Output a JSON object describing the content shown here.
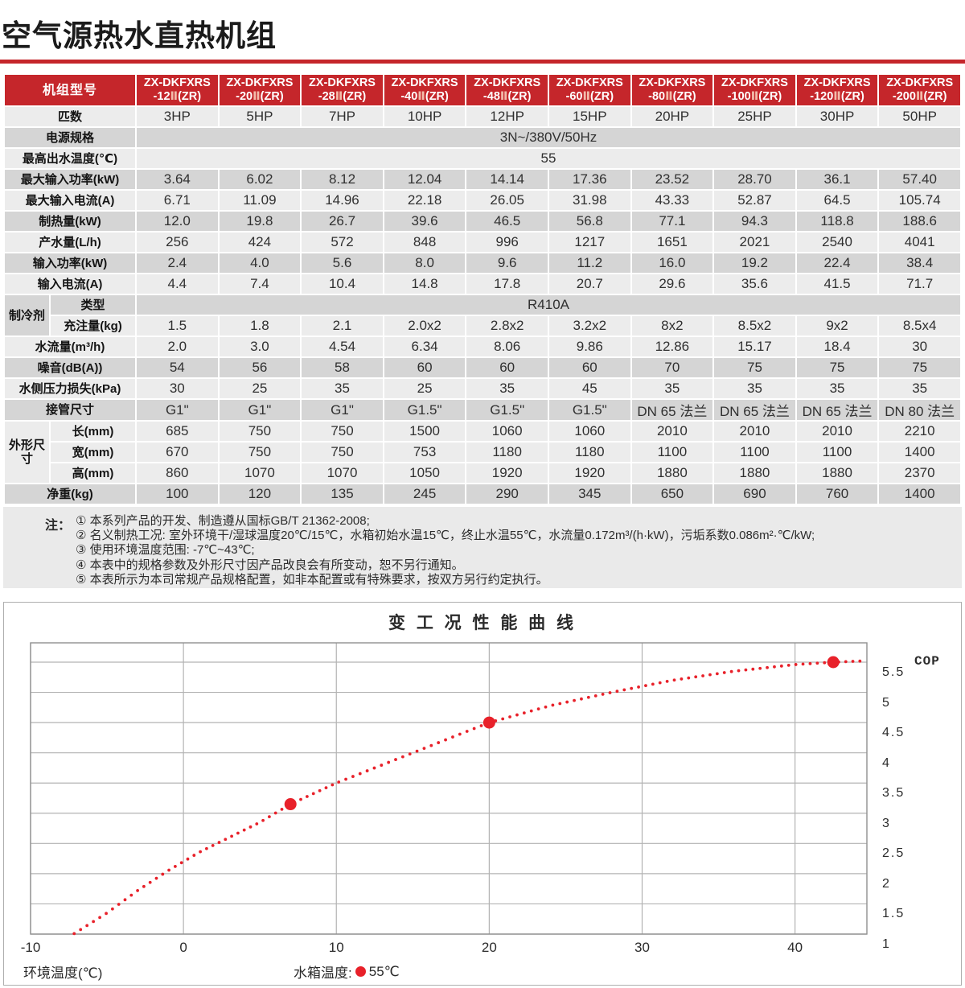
{
  "page": {
    "title": "空气源热水直热机组"
  },
  "colors": {
    "accent_red": "#c5262b",
    "chart_red": "#e8212a",
    "row_light": "#ececec",
    "row_dark": "#d5d5d5",
    "notes_bg": "#eaeaea"
  },
  "table": {
    "corner_label": "机组型号",
    "models": [
      {
        "line1": "ZX-DKFXRS",
        "pre": "-12",
        "roman": "Ⅱ",
        "suf": "(ZR)"
      },
      {
        "line1": "ZX-DKFXRS",
        "pre": "-20",
        "roman": "Ⅱ",
        "suf": "(ZR)"
      },
      {
        "line1": "ZX-DKFXRS",
        "pre": "-28",
        "roman": "Ⅱ",
        "suf": "(ZR)"
      },
      {
        "line1": "ZX-DKFXRS",
        "pre": "-40",
        "roman": "Ⅱ",
        "suf": "(ZR)"
      },
      {
        "line1": "ZX-DKFXRS",
        "pre": "-48",
        "roman": "Ⅱ",
        "suf": "(ZR)"
      },
      {
        "line1": "ZX-DKFXRS",
        "pre": "-60",
        "roman": "Ⅱ",
        "suf": "(ZR)"
      },
      {
        "line1": "ZX-DKFXRS",
        "pre": "-80",
        "roman": "Ⅱ",
        "suf": "(ZR)"
      },
      {
        "line1": "ZX-DKFXRS",
        "pre": "-100",
        "roman": "Ⅱ",
        "suf": "(ZR)"
      },
      {
        "line1": "ZX-DKFXRS",
        "pre": "-120",
        "roman": "Ⅱ",
        "suf": "(ZR)"
      },
      {
        "line1": "ZX-DKFXRS",
        "pre": "-200",
        "roman": "Ⅱ",
        "suf": "(ZR)"
      }
    ],
    "rows": [
      {
        "label": "匹数",
        "shade": "light",
        "values": [
          "3HP",
          "5HP",
          "7HP",
          "10HP",
          "12HP",
          "15HP",
          "20HP",
          "25HP",
          "30HP",
          "50HP"
        ]
      },
      {
        "label": "电源规格",
        "shade": "dark",
        "span_value": "3N~/380V/50Hz"
      },
      {
        "label": "最高出水温度(℃)",
        "shade": "light",
        "span_value": "55"
      },
      {
        "label": "最大输入功率(kW)",
        "shade": "dark",
        "values": [
          "3.64",
          "6.02",
          "8.12",
          "12.04",
          "14.14",
          "17.36",
          "23.52",
          "28.70",
          "36.1",
          "57.40"
        ]
      },
      {
        "label": "最大输入电流(A)",
        "shade": "light",
        "values": [
          "6.71",
          "11.09",
          "14.96",
          "22.18",
          "26.05",
          "31.98",
          "43.33",
          "52.87",
          "64.5",
          "105.74"
        ]
      },
      {
        "label": "制热量(kW)",
        "shade": "dark",
        "values": [
          "12.0",
          "19.8",
          "26.7",
          "39.6",
          "46.5",
          "56.8",
          "77.1",
          "94.3",
          "118.8",
          "188.6"
        ]
      },
      {
        "label": "产水量(L/h)",
        "shade": "light",
        "values": [
          "256",
          "424",
          "572",
          "848",
          "996",
          "1217",
          "1651",
          "2021",
          "2540",
          "4041"
        ]
      },
      {
        "label": "输入功率(kW)",
        "shade": "dark",
        "values": [
          "2.4",
          "4.0",
          "5.6",
          "8.0",
          "9.6",
          "11.2",
          "16.0",
          "19.2",
          "22.4",
          "38.4"
        ]
      },
      {
        "label": "输入电流(A)",
        "shade": "light",
        "values": [
          "4.4",
          "7.4",
          "10.4",
          "14.8",
          "17.8",
          "20.7",
          "29.6",
          "35.6",
          "41.5",
          "71.7"
        ]
      },
      {
        "label": "类型",
        "sub": true,
        "group": "制冷剂",
        "group_span": 2,
        "shade": "dark",
        "span_value": "R410A"
      },
      {
        "label": "充注量(kg)",
        "sub": true,
        "shade": "light",
        "values": [
          "1.5",
          "1.8",
          "2.1",
          "2.0x2",
          "2.8x2",
          "3.2x2",
          "8x2",
          "8.5x2",
          "9x2",
          "8.5x4"
        ]
      },
      {
        "label": "水流量(m³/h)",
        "shade": "light",
        "values": [
          "2.0",
          "3.0",
          "4.54",
          "6.34",
          "8.06",
          "9.86",
          "12.86",
          "15.17",
          "18.4",
          "30"
        ]
      },
      {
        "label": "噪音(dB(A))",
        "shade": "dark",
        "values": [
          "54",
          "56",
          "58",
          "60",
          "60",
          "60",
          "70",
          "75",
          "75",
          "75"
        ]
      },
      {
        "label": "水侧压力损失(kPa)",
        "shade": "light",
        "values": [
          "30",
          "25",
          "35",
          "25",
          "35",
          "45",
          "35",
          "35",
          "35",
          "35"
        ]
      },
      {
        "label": "接管尺寸",
        "shade": "dark",
        "values": [
          "G1\"",
          "G1\"",
          "G1\"",
          "G1.5\"",
          "G1.5\"",
          "G1.5\"",
          "DN 65 法兰",
          "DN 65 法兰",
          "DN 65 法兰",
          "DN 80 法兰"
        ]
      },
      {
        "label": "长(mm)",
        "sub": true,
        "group": "外形尺寸",
        "group_span": 3,
        "shade": "light",
        "values": [
          "685",
          "750",
          "750",
          "1500",
          "1060",
          "1060",
          "2010",
          "2010",
          "2010",
          "2210"
        ]
      },
      {
        "label": "宽(mm)",
        "sub": true,
        "shade": "light",
        "values": [
          "670",
          "750",
          "750",
          "753",
          "1180",
          "1180",
          "1100",
          "1100",
          "1100",
          "1400"
        ]
      },
      {
        "label": "高(mm)",
        "sub": true,
        "shade": "light",
        "values": [
          "860",
          "1070",
          "1070",
          "1050",
          "1920",
          "1920",
          "1880",
          "1880",
          "1880",
          "2370"
        ]
      },
      {
        "label": "净重(kg)",
        "shade": "dark",
        "values": [
          "100",
          "120",
          "135",
          "245",
          "290",
          "345",
          "650",
          "690",
          "760",
          "1400"
        ]
      }
    ]
  },
  "notes": {
    "prefix": "注：",
    "lines": [
      "① 本系列产品的开发、制造遵从国标GB/T 21362-2008;",
      "② 名义制热工况: 室外环境干/湿球温度20℃/15℃，水箱初始水温15℃，终止水温55℃，水流量0.172m³/(h·kW)，污垢系数0.086m²·℃/kW;",
      "③ 使用环境温度范围: -7℃~43℃;",
      "④ 本表中的规格参数及外形尺寸因产品改良会有所变动，恕不另行通知。",
      "⑤ 本表所示为本司常规产品规格配置，如非本配置或有特殊要求，按双方另行约定执行。"
    ]
  },
  "chart_data": {
    "type": "line",
    "title": "变  工  况  性  能  曲  线",
    "xlabel": "环境温度(℃)",
    "ylabel": "COP",
    "y_axis_side": "right",
    "grid": true,
    "line_style": "dotted",
    "xlim": [
      -10,
      44.7
    ],
    "ylim": [
      1,
      5.82
    ],
    "x_ticks": [
      -10,
      0,
      10,
      20,
      30,
      40
    ],
    "y_ticks": [
      5.5,
      5,
      4.5,
      4,
      3.5,
      3,
      2.5,
      2,
      1.5,
      1
    ],
    "legend": {
      "label": "水箱温度:",
      "marker": "dot",
      "value": "55℃",
      "color": "#e8212a"
    },
    "series": [
      {
        "name": "水箱温度 55℃",
        "color": "#e8212a",
        "points": [
          [
            -7.2,
            1.0
          ],
          [
            -5,
            1.35
          ],
          [
            -3,
            1.72
          ],
          [
            -1,
            2.05
          ],
          [
            1,
            2.35
          ],
          [
            3,
            2.6
          ],
          [
            5,
            2.85
          ],
          [
            7,
            3.15
          ],
          [
            10,
            3.5
          ],
          [
            13,
            3.8
          ],
          [
            16,
            4.1
          ],
          [
            20,
            4.5
          ],
          [
            24,
            4.78
          ],
          [
            28,
            5.0
          ],
          [
            32,
            5.2
          ],
          [
            36,
            5.35
          ],
          [
            40,
            5.46
          ],
          [
            42.5,
            5.5
          ],
          [
            44.5,
            5.52
          ]
        ],
        "highlight_markers": [
          [
            7,
            3.15
          ],
          [
            20,
            4.5
          ],
          [
            42.5,
            5.5
          ]
        ]
      }
    ]
  }
}
